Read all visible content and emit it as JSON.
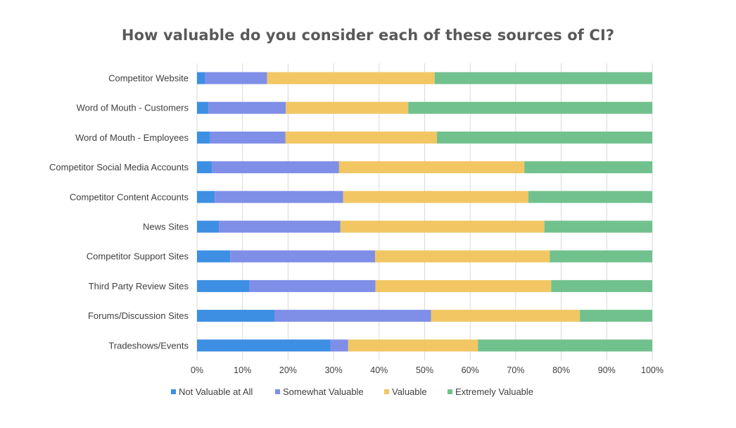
{
  "chart_data": {
    "type": "bar",
    "orientation": "horizontal",
    "stacked": true,
    "title": "How valuable do you consider each of these sources of CI?",
    "categories": [
      "Competitor Website",
      "Word of Mouth - Customers",
      "Word of Mouth - Employees",
      "Competitor Social Media Accounts",
      "Competitor Content Accounts",
      "News Sites",
      "Competitor Support Sites",
      "Third Party Review Sites",
      "Forums/Discussion Sites",
      "Tradeshows/Events"
    ],
    "series": [
      {
        "name": "Not Valuable at All",
        "color": "#3d8fe3",
        "values": [
          1.7,
          2.5,
          2.9,
          3.3,
          3.9,
          4.8,
          7.3,
          11.5,
          17.0,
          29.3
        ]
      },
      {
        "name": "Somewhat Valuable",
        "color": "#7f8ee7",
        "values": [
          13.7,
          17.0,
          16.5,
          27.9,
          28.2,
          26.7,
          31.8,
          27.7,
          34.4,
          3.9
        ]
      },
      {
        "name": "Valuable",
        "color": "#f1c663",
        "values": [
          36.8,
          26.9,
          33.3,
          40.7,
          40.7,
          44.8,
          38.4,
          38.6,
          32.7,
          28.5
        ]
      },
      {
        "name": "Extremely Valuable",
        "color": "#71c18e",
        "values": [
          47.8,
          53.6,
          47.3,
          28.1,
          27.2,
          23.7,
          22.5,
          22.2,
          15.9,
          38.3
        ]
      }
    ],
    "xlim": [
      0,
      100
    ],
    "x_ticks": [
      "0%",
      "10%",
      "20%",
      "30%",
      "40%",
      "50%",
      "60%",
      "70%",
      "80%",
      "90%",
      "100%"
    ],
    "grid": "vertical",
    "legend_position": "bottom"
  },
  "colors": {
    "grid": "#d9d9d9",
    "title": "#595959",
    "text": "#404040"
  }
}
